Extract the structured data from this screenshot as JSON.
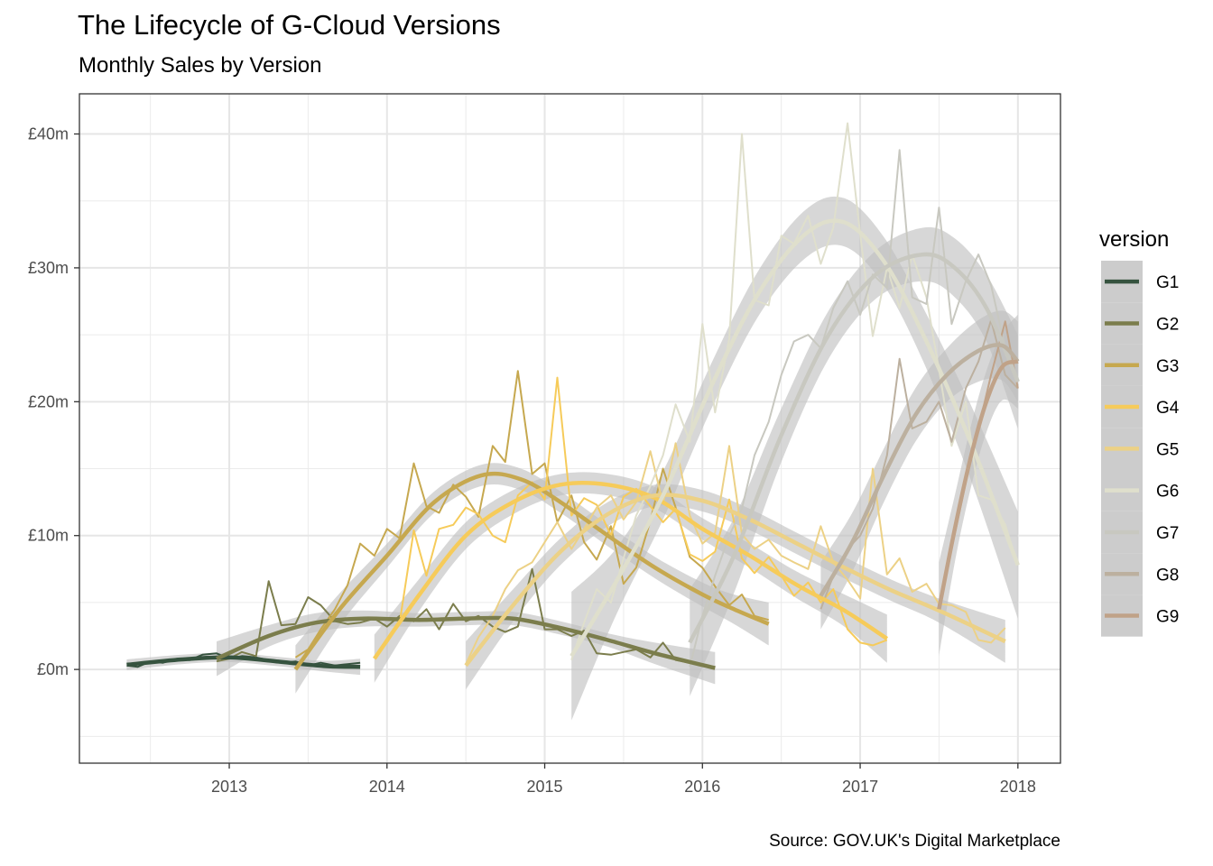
{
  "chart_data": {
    "type": "line",
    "title": "The Lifecycle of G-Cloud Versions",
    "subtitle": "Monthly Sales by Version",
    "caption": "Source: GOV.UK's Digital Marketplace",
    "xlabel": "",
    "ylabel": "",
    "xlim": [
      2012.05,
      2018.27
    ],
    "ylim": [
      -7,
      43
    ],
    "x_ticks": [
      {
        "value": 2013,
        "label": "2013"
      },
      {
        "value": 2014,
        "label": "2014"
      },
      {
        "value": 2015,
        "label": "2015"
      },
      {
        "value": 2016,
        "label": "2016"
      },
      {
        "value": 2017,
        "label": "2017"
      },
      {
        "value": 2018,
        "label": "2018"
      }
    ],
    "y_ticks": [
      {
        "value": 0,
        "label": "£0m"
      },
      {
        "value": 10,
        "label": "£10m"
      },
      {
        "value": 20,
        "label": "£20m"
      },
      {
        "value": 30,
        "label": "£30m"
      },
      {
        "value": 40,
        "label": "£40m"
      }
    ],
    "grid": true,
    "legend": {
      "title": "version",
      "position": "right"
    },
    "band_color": "#bfbfbf",
    "series": [
      {
        "name": "G1",
        "color": "#36533f",
        "x": [
          2012.35,
          2012.42,
          2012.5,
          2012.58,
          2012.67,
          2012.75,
          2012.83,
          2012.92,
          2013.0,
          2013.08,
          2013.17,
          2013.25,
          2013.33,
          2013.42,
          2013.5,
          2013.58,
          2013.67,
          2013.75,
          2013.83
        ],
        "y": [
          0.3,
          0.2,
          0.6,
          0.5,
          0.8,
          0.7,
          1.1,
          1.2,
          0.8,
          1.0,
          0.9,
          0.7,
          0.5,
          0.6,
          0.3,
          0.5,
          0.3,
          0.4,
          0.5
        ],
        "smooth_x": [
          2012.35,
          2012.7,
          2013.0,
          2013.3,
          2013.6,
          2013.83
        ],
        "smooth_y": [
          0.35,
          0.75,
          0.9,
          0.6,
          0.25,
          0.2
        ],
        "band": [
          0.4,
          0.35,
          0.35,
          0.35,
          0.4,
          0.6
        ]
      },
      {
        "name": "G2",
        "color": "#7b7d4c",
        "x": [
          2012.92,
          2013.0,
          2013.08,
          2013.17,
          2013.25,
          2013.33,
          2013.42,
          2013.5,
          2013.58,
          2013.67,
          2013.75,
          2013.83,
          2013.92,
          2014.0,
          2014.08,
          2014.17,
          2014.25,
          2014.33,
          2014.42,
          2014.5,
          2014.58,
          2014.67,
          2014.75,
          2014.83,
          2014.92,
          2015.0,
          2015.08,
          2015.17,
          2015.25,
          2015.33,
          2015.42,
          2015.5,
          2015.58,
          2015.67,
          2015.75,
          2015.83,
          2015.92,
          2016.0,
          2016.08
        ],
        "y": [
          0.6,
          0.8,
          1.3,
          1.0,
          6.6,
          3.3,
          3.4,
          5.4,
          4.8,
          3.6,
          3.4,
          3.5,
          3.8,
          3.2,
          4.0,
          3.6,
          4.5,
          3.0,
          4.9,
          3.6,
          4.0,
          3.2,
          2.8,
          3.2,
          7.5,
          3.0,
          3.0,
          2.5,
          2.9,
          1.2,
          1.1,
          1.3,
          1.5,
          0.9,
          2.0,
          0.7,
          0.5,
          0.3,
          0.2
        ],
        "smooth_x": [
          2012.92,
          2013.25,
          2013.55,
          2013.85,
          2014.2,
          2014.5,
          2014.8,
          2015.1,
          2015.4,
          2015.7,
          2016.08
        ],
        "smooth_y": [
          0.8,
          2.5,
          3.5,
          3.8,
          3.7,
          3.8,
          3.8,
          3.1,
          2.2,
          1.2,
          0.1
        ],
        "band": [
          1.3,
          0.8,
          0.7,
          0.6,
          0.5,
          0.5,
          0.5,
          0.5,
          0.5,
          0.8,
          1.2
        ]
      },
      {
        "name": "G3",
        "color": "#c6a84f",
        "x": [
          2013.42,
          2013.5,
          2013.58,
          2013.67,
          2013.75,
          2013.83,
          2013.92,
          2014.0,
          2014.08,
          2014.17,
          2014.25,
          2014.33,
          2014.42,
          2014.5,
          2014.58,
          2014.67,
          2014.75,
          2014.83,
          2014.92,
          2015.0,
          2015.08,
          2015.17,
          2015.25,
          2015.33,
          2015.42,
          2015.5,
          2015.58,
          2015.67,
          2015.75,
          2015.83,
          2015.92,
          2016.0,
          2016.08,
          2016.17,
          2016.25,
          2016.33,
          2016.42
        ],
        "y": [
          0.9,
          1.5,
          3.0,
          4.5,
          6.3,
          9.4,
          8.5,
          10.5,
          9.8,
          15.4,
          12.2,
          11.7,
          13.8,
          12.9,
          11.4,
          16.7,
          15.5,
          22.3,
          14.6,
          15.4,
          11.0,
          13.0,
          9.5,
          8.2,
          10.7,
          6.4,
          7.6,
          11.1,
          15.0,
          12.1,
          8.4,
          7.6,
          6.2,
          4.8,
          5.6,
          4.0,
          3.7
        ],
        "smooth_x": [
          2013.42,
          2013.7,
          2014.0,
          2014.3,
          2014.6,
          2014.85,
          2015.1,
          2015.4,
          2015.7,
          2016.0,
          2016.2,
          2016.42
        ],
        "smooth_y": [
          0.0,
          4.5,
          8.5,
          12.5,
          14.5,
          14.2,
          12.5,
          10.0,
          7.6,
          5.6,
          4.5,
          3.4
        ],
        "band": [
          1.8,
          1.2,
          0.9,
          0.8,
          0.8,
          0.8,
          0.8,
          0.8,
          0.8,
          0.9,
          1.1,
          1.6
        ]
      },
      {
        "name": "G4",
        "color": "#f6cb5a",
        "x": [
          2013.92,
          2014.0,
          2014.08,
          2014.17,
          2014.25,
          2014.33,
          2014.42,
          2014.5,
          2014.58,
          2014.67,
          2014.75,
          2014.83,
          2014.92,
          2015.0,
          2015.08,
          2015.17,
          2015.25,
          2015.33,
          2015.42,
          2015.5,
          2015.58,
          2015.67,
          2015.75,
          2015.83,
          2015.92,
          2016.0,
          2016.08,
          2016.17,
          2016.25,
          2016.33,
          2016.42,
          2016.5,
          2016.58,
          2016.67,
          2016.75,
          2016.83,
          2016.92,
          2017.0,
          2017.08,
          2017.17
        ],
        "y": [
          0.9,
          2.0,
          3.5,
          10.4,
          7.0,
          10.5,
          10.8,
          12.1,
          11.6,
          10.0,
          9.5,
          13.0,
          14.0,
          12.7,
          21.8,
          11.5,
          12.8,
          12.3,
          10.0,
          12.9,
          13.5,
          12.2,
          11.0,
          12.0,
          8.6,
          8.1,
          8.8,
          12.7,
          8.3,
          7.2,
          8.4,
          7.0,
          5.5,
          6.5,
          5.0,
          6.0,
          3.0,
          2.0,
          1.8,
          2.2
        ],
        "smooth_x": [
          2013.92,
          2014.2,
          2014.5,
          2014.8,
          2015.1,
          2015.4,
          2015.7,
          2016.0,
          2016.3,
          2016.6,
          2016.9,
          2017.17
        ],
        "smooth_y": [
          0.8,
          5.5,
          10.0,
          12.5,
          13.8,
          13.8,
          12.8,
          10.5,
          8.5,
          6.3,
          4.4,
          2.3
        ],
        "band": [
          1.8,
          1.2,
          1.0,
          0.9,
          0.8,
          0.8,
          0.8,
          0.8,
          0.9,
          1.0,
          1.2,
          1.8
        ]
      },
      {
        "name": "G5",
        "color": "#ecd186",
        "x": [
          2014.5,
          2014.58,
          2014.67,
          2014.75,
          2014.83,
          2014.92,
          2015.0,
          2015.08,
          2015.17,
          2015.25,
          2015.33,
          2015.42,
          2015.5,
          2015.58,
          2015.67,
          2015.75,
          2015.83,
          2015.92,
          2016.0,
          2016.08,
          2016.17,
          2016.25,
          2016.33,
          2016.42,
          2016.5,
          2016.58,
          2016.67,
          2016.75,
          2016.83,
          2016.92,
          2017.0,
          2017.08,
          2017.17,
          2017.25,
          2017.33,
          2017.42,
          2017.5,
          2017.58,
          2017.67,
          2017.75,
          2017.83,
          2017.92
        ],
        "y": [
          0.4,
          2.4,
          4.0,
          6.0,
          7.4,
          8.0,
          9.5,
          11.0,
          9.0,
          10.5,
          12.1,
          13.0,
          11.2,
          12.5,
          16.3,
          12.4,
          16.9,
          11.5,
          9.4,
          10.2,
          16.7,
          10.1,
          9.0,
          9.7,
          8.5,
          8.0,
          7.5,
          10.7,
          8.0,
          6.7,
          5.3,
          15.0,
          7.1,
          8.3,
          5.8,
          6.4,
          4.9,
          4.8,
          4.3,
          2.2,
          2.0,
          3.1
        ],
        "smooth_x": [
          2014.5,
          2014.8,
          2015.1,
          2015.4,
          2015.7,
          2016.0,
          2016.3,
          2016.6,
          2016.9,
          2017.2,
          2017.5,
          2017.92
        ],
        "smooth_y": [
          0.3,
          4.8,
          8.8,
          11.6,
          13.0,
          12.6,
          11.2,
          9.4,
          7.6,
          5.9,
          4.4,
          2.1
        ],
        "band": [
          1.8,
          1.2,
          1.0,
          0.9,
          0.8,
          0.8,
          0.8,
          0.8,
          0.8,
          0.8,
          0.9,
          1.6
        ]
      },
      {
        "name": "G6",
        "color": "#dfdfcc",
        "x": [
          2015.17,
          2015.25,
          2015.33,
          2015.42,
          2015.5,
          2015.58,
          2015.67,
          2015.75,
          2015.83,
          2015.92,
          2016.0,
          2016.08,
          2016.17,
          2016.25,
          2016.33,
          2016.42,
          2016.5,
          2016.58,
          2016.67,
          2016.75,
          2016.83,
          2016.92,
          2017.0,
          2017.08,
          2017.17,
          2017.25,
          2017.33,
          2017.42,
          2017.5,
          2017.58,
          2017.67,
          2017.75,
          2017.83,
          2017.92,
          2018.0
        ],
        "y": [
          0.7,
          3.5,
          6.0,
          5.0,
          8.3,
          11.5,
          13.7,
          16.0,
          19.8,
          17.0,
          25.8,
          19.2,
          24.7,
          40.0,
          27.6,
          27.2,
          32.4,
          31.8,
          33.9,
          30.3,
          33.0,
          40.8,
          32.5,
          24.9,
          30.0,
          27.0,
          31.0,
          27.8,
          22.4,
          16.7,
          20.0,
          13.0,
          12.7,
          10.8,
          7.8
        ],
        "smooth_x": [
          2015.17,
          2015.45,
          2015.75,
          2016.05,
          2016.35,
          2016.65,
          2016.9,
          2017.15,
          2017.4,
          2017.7,
          2018.0
        ],
        "smooth_y": [
          1.0,
          6.5,
          13.0,
          21.0,
          28.0,
          32.5,
          33.4,
          30.5,
          25.0,
          17.0,
          7.8
        ],
        "band": [
          4.8,
          2.5,
          1.8,
          1.7,
          1.7,
          1.8,
          1.8,
          1.8,
          2.0,
          2.8,
          4.0
        ]
      },
      {
        "name": "G7",
        "color": "#c8c8c0",
        "x": [
          2015.92,
          2016.0,
          2016.08,
          2016.17,
          2016.25,
          2016.33,
          2016.42,
          2016.5,
          2016.58,
          2016.67,
          2016.75,
          2016.83,
          2016.92,
          2017.0,
          2017.08,
          2017.17,
          2017.25,
          2017.33,
          2017.42,
          2017.5,
          2017.58,
          2017.67,
          2017.75,
          2017.83,
          2017.92,
          2018.0
        ],
        "y": [
          0.2,
          4.0,
          7.0,
          10.0,
          12.0,
          16.0,
          18.5,
          22.0,
          24.5,
          25.0,
          24.0,
          27.0,
          29.0,
          26.5,
          29.5,
          28.5,
          38.8,
          27.8,
          27.3,
          34.5,
          25.8,
          29.0,
          31.0,
          28.7,
          24.0,
          21.2
        ],
        "smooth_x": [
          2015.92,
          2016.2,
          2016.5,
          2016.8,
          2017.1,
          2017.4,
          2017.6,
          2017.8,
          2018.0
        ],
        "smooth_y": [
          2.0,
          8.5,
          17.5,
          25.0,
          29.5,
          31.0,
          30.0,
          27.0,
          21.5
        ],
        "band": [
          4.0,
          2.8,
          2.0,
          1.8,
          1.8,
          2.0,
          2.2,
          2.5,
          3.5
        ]
      },
      {
        "name": "G8",
        "color": "#bcb09f",
        "x": [
          2016.75,
          2016.83,
          2016.92,
          2017.0,
          2017.08,
          2017.17,
          2017.25,
          2017.33,
          2017.42,
          2017.5,
          2017.58,
          2017.67,
          2017.75,
          2017.83,
          2017.92,
          2018.0
        ],
        "y": [
          4.5,
          7.0,
          9.0,
          10.0,
          12.0,
          16.0,
          23.2,
          18.0,
          18.5,
          20.0,
          17.0,
          21.0,
          23.0,
          26.1,
          22.0,
          21.0
        ],
        "smooth_x": [
          2016.75,
          2016.95,
          2017.15,
          2017.35,
          2017.55,
          2017.75,
          2017.9,
          2018.0
        ],
        "smooth_y": [
          5.5,
          9.5,
          14.5,
          19.0,
          22.0,
          23.8,
          24.2,
          23.0
        ],
        "band": [
          2.5,
          2.2,
          2.0,
          2.0,
          2.0,
          2.3,
          2.6,
          3.0
        ]
      },
      {
        "name": "G9",
        "color": "#c0a288",
        "x": [
          2017.5,
          2017.58,
          2017.67,
          2017.75,
          2017.83,
          2017.92,
          2018.0
        ],
        "y": [
          4.6,
          9.0,
          14.0,
          18.0,
          22.0,
          26.0,
          21.0
        ],
        "smooth_x": [
          2017.5,
          2017.6,
          2017.7,
          2017.8,
          2017.9,
          2018.0
        ],
        "smooth_y": [
          4.5,
          10.5,
          15.8,
          20.0,
          22.6,
          23.0
        ],
        "band": [
          3.5,
          2.5,
          2.3,
          2.3,
          2.5,
          3.5
        ]
      }
    ]
  }
}
